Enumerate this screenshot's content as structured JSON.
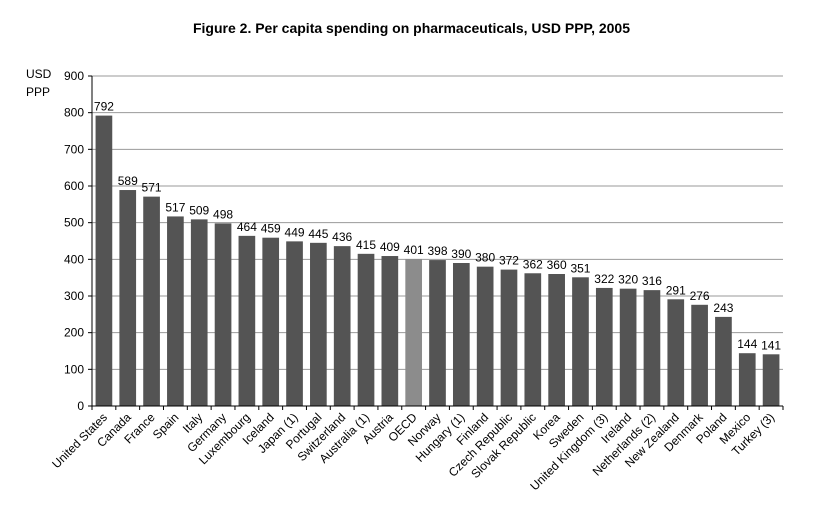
{
  "chart_data": {
    "type": "bar",
    "title": "Figure 2.  Per capita spending on pharmaceuticals, USD PPP, 2005",
    "ylabel_lines": [
      "USD",
      "PPP"
    ],
    "xlabel": "",
    "ylim": [
      0,
      900
    ],
    "yticks": [
      0,
      100,
      200,
      300,
      400,
      500,
      600,
      700,
      800,
      900
    ],
    "grid": true,
    "legend": "none",
    "bar_color": "#545454",
    "highlight_color": "#8c8c8c",
    "highlight_category": "OECD",
    "categories": [
      "United States",
      "Canada",
      "France",
      "Spain",
      "Italy",
      "Germany",
      "Luxembourg",
      "Iceland",
      "Japan (1)",
      "Portugal",
      "Switzerland",
      "Australia (1)",
      "Austria",
      "OECD",
      "Norway",
      "Hungary (1)",
      "Finland",
      "Czech Republic",
      "Slovak Republic",
      "Korea",
      "Sweden",
      "United Kingdom (3)",
      "Ireland",
      "Netherlands (2)",
      "New Zealand",
      "Denmark",
      "Poland",
      "Mexico",
      "Turkey (3)"
    ],
    "values": [
      792,
      589,
      571,
      517,
      509,
      498,
      464,
      459,
      449,
      445,
      436,
      415,
      409,
      401,
      398,
      390,
      380,
      372,
      362,
      360,
      351,
      322,
      320,
      316,
      291,
      276,
      243,
      144,
      141
    ]
  }
}
